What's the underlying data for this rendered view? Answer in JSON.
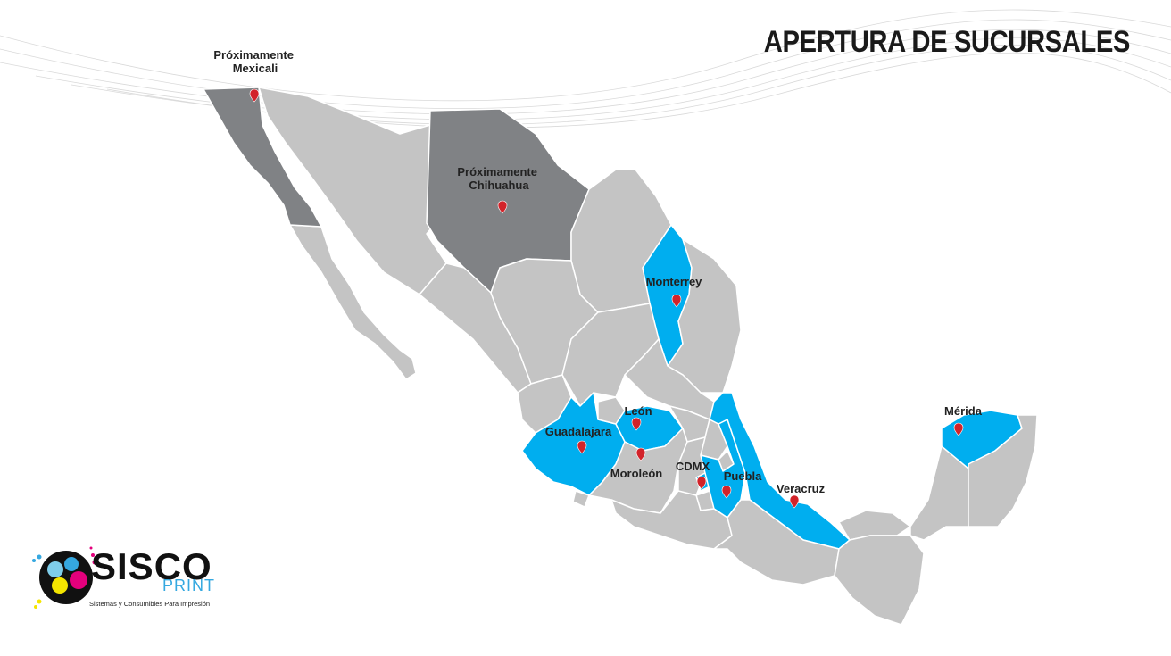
{
  "title": "APERTURA DE SUCURSALES",
  "colors": {
    "state_default": "#c4c4c4",
    "state_border": "#ffffff",
    "branch_open": "#00aeef",
    "branch_upcoming": "#808285",
    "marker": "#d2232a"
  },
  "locations": [
    {
      "id": "mexicali",
      "label_lines": [
        "Próximamente",
        "Mexicali"
      ],
      "status": "upcoming"
    },
    {
      "id": "chihuahua",
      "label_lines": [
        "Próximamente",
        "Chihuahua"
      ],
      "status": "upcoming"
    },
    {
      "id": "monterrey",
      "label_lines": [
        "Monterrey"
      ],
      "status": "open"
    },
    {
      "id": "leon",
      "label_lines": [
        "León"
      ],
      "status": "open"
    },
    {
      "id": "guadalajara",
      "label_lines": [
        "Guadalajara"
      ],
      "status": "open"
    },
    {
      "id": "moroleon",
      "label_lines": [
        "Moroleón"
      ],
      "status": "open"
    },
    {
      "id": "cdmx",
      "label_lines": [
        "CDMX"
      ],
      "status": "open"
    },
    {
      "id": "puebla",
      "label_lines": [
        "Puebla"
      ],
      "status": "open"
    },
    {
      "id": "veracruz",
      "label_lines": [
        "Veracruz"
      ],
      "status": "open"
    },
    {
      "id": "merida",
      "label_lines": [
        "Mérida"
      ],
      "status": "open"
    }
  ],
  "logo": {
    "name": "SISCO",
    "sub": "PRINT",
    "tagline": "Sistemas y Consumibles Para Impresión"
  }
}
